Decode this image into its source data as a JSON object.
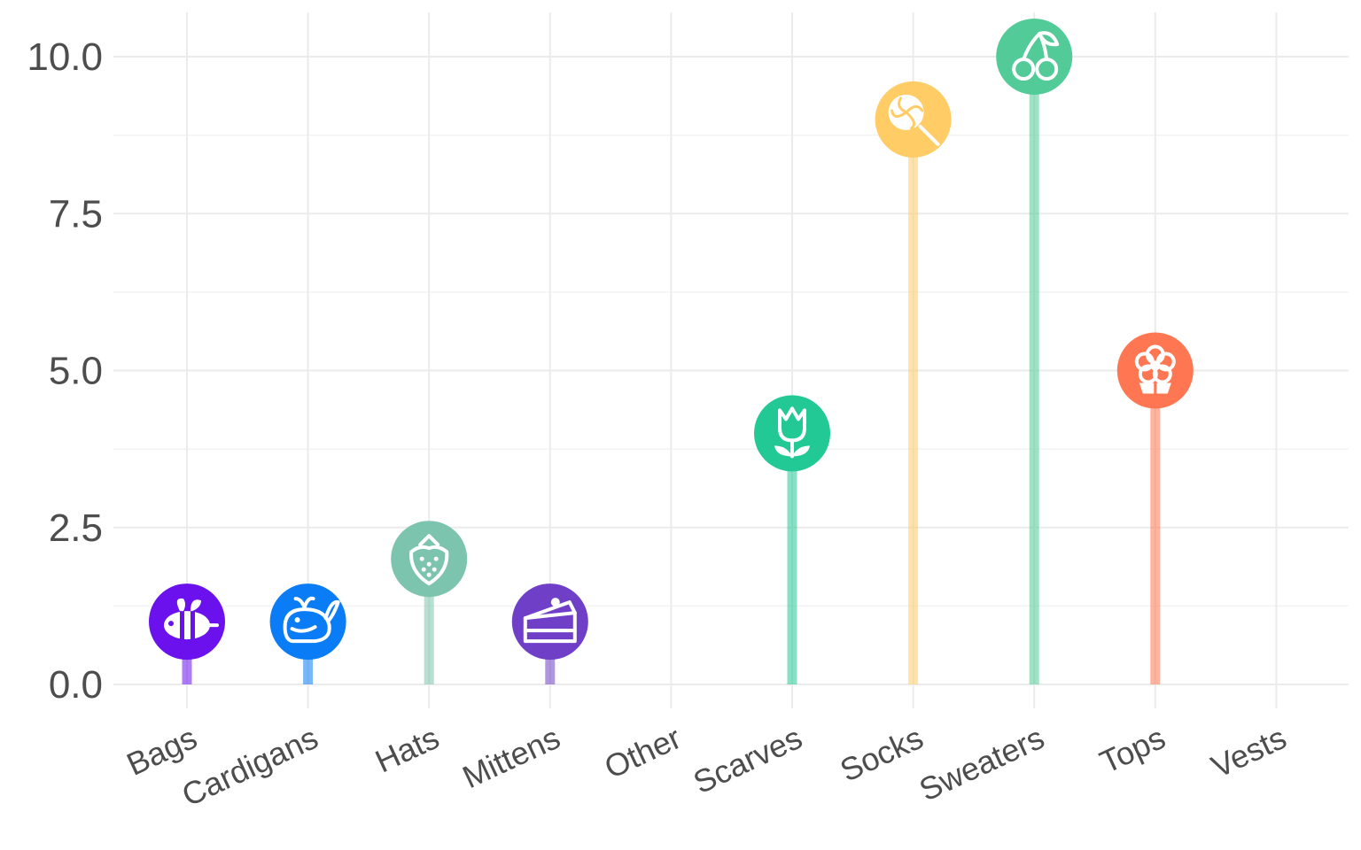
{
  "chart_data": {
    "type": "lollipop",
    "title": "",
    "xlabel": "",
    "ylabel": "",
    "ylim": [
      0,
      10
    ],
    "yticks": [
      "0.0",
      "2.5",
      "5.0",
      "7.5",
      "10.0"
    ],
    "grid": true,
    "categories": [
      "Bags",
      "Cardigans",
      "Hats",
      "Mittens",
      "Other",
      "Scarves",
      "Socks",
      "Sweaters",
      "Tops",
      "Vests"
    ],
    "values": [
      1,
      1,
      2,
      1,
      0,
      4,
      9,
      10,
      5,
      0
    ],
    "colors": [
      "#6a11ee",
      "#0a7cf5",
      "#7cc4ad",
      "#6f3fc7",
      null,
      "#22c995",
      "#ffcc66",
      "#52cb98",
      "#ff7752",
      null
    ],
    "icons": [
      "bee-icon",
      "whale-icon",
      "strawberry-icon",
      "cake-icon",
      null,
      "tulip-icon",
      "lollipop-icon",
      "cherry-icon",
      "flower-icon",
      null
    ]
  }
}
